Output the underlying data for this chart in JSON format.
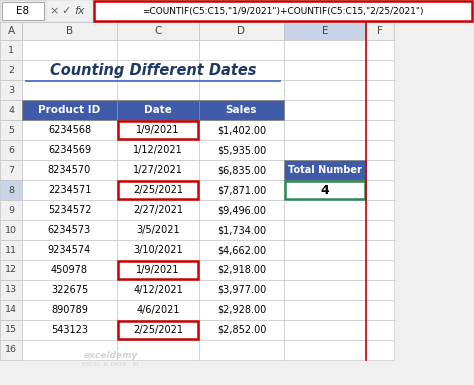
{
  "title": "Counting Different Dates",
  "formula_bar_cell": "E8",
  "formula_bar_text": "=COUNTIF(C5:C15,\"1/9/2021\")+COUNTIF(C5:C15,\"2/25/2021\")",
  "headers": [
    "Product ID",
    "Date",
    "Sales"
  ],
  "rows": [
    [
      "6234568",
      "1/9/2021",
      "$1,402.00"
    ],
    [
      "6234569",
      "1/12/2021",
      "$5,935.00"
    ],
    [
      "8234570",
      "1/27/2021",
      "$6,835.00"
    ],
    [
      "2234571",
      "2/25/2021",
      "$7,871.00"
    ],
    [
      "5234572",
      "2/27/2021",
      "$9,496.00"
    ],
    [
      "6234573",
      "3/5/2021",
      "$1,734.00"
    ],
    [
      "9234574",
      "3/10/2021",
      "$4,662.00"
    ],
    [
      "450978",
      "1/9/2021",
      "$2,918.00"
    ],
    [
      "322675",
      "4/12/2021",
      "$3,977.00"
    ],
    [
      "890789",
      "4/6/2021",
      "$2,928.00"
    ],
    [
      "543123",
      "2/25/2021",
      "$2,852.00"
    ]
  ],
  "highlighted_date_rows": [
    0,
    3,
    7,
    10
  ],
  "header_bg": "#3F5BA9",
  "header_fg": "#FFFFFF",
  "highlight_border": "#CC0000",
  "total_number_label": "Total Number",
  "total_number_value": "4",
  "total_label_bg": "#3F5BA9",
  "total_label_fg": "#FFFFFF",
  "total_value_border": "#2E8B57",
  "excel_bg": "#F0F0F0",
  "col_header_bg": "#F0F0F0",
  "col_header_sel_bg": "#C8D4E8",
  "row_num_sel_bg": "#C8D4E8",
  "grid_line_color": "#C0C0C0",
  "cell_bg": "#FFFFFF",
  "title_color": "#1F3864",
  "title_underline_color": "#4472C4",
  "formula_border_color": "#CC0000",
  "selected_col_border": "#CC0000",
  "watermark_color": "#C8C8C8"
}
